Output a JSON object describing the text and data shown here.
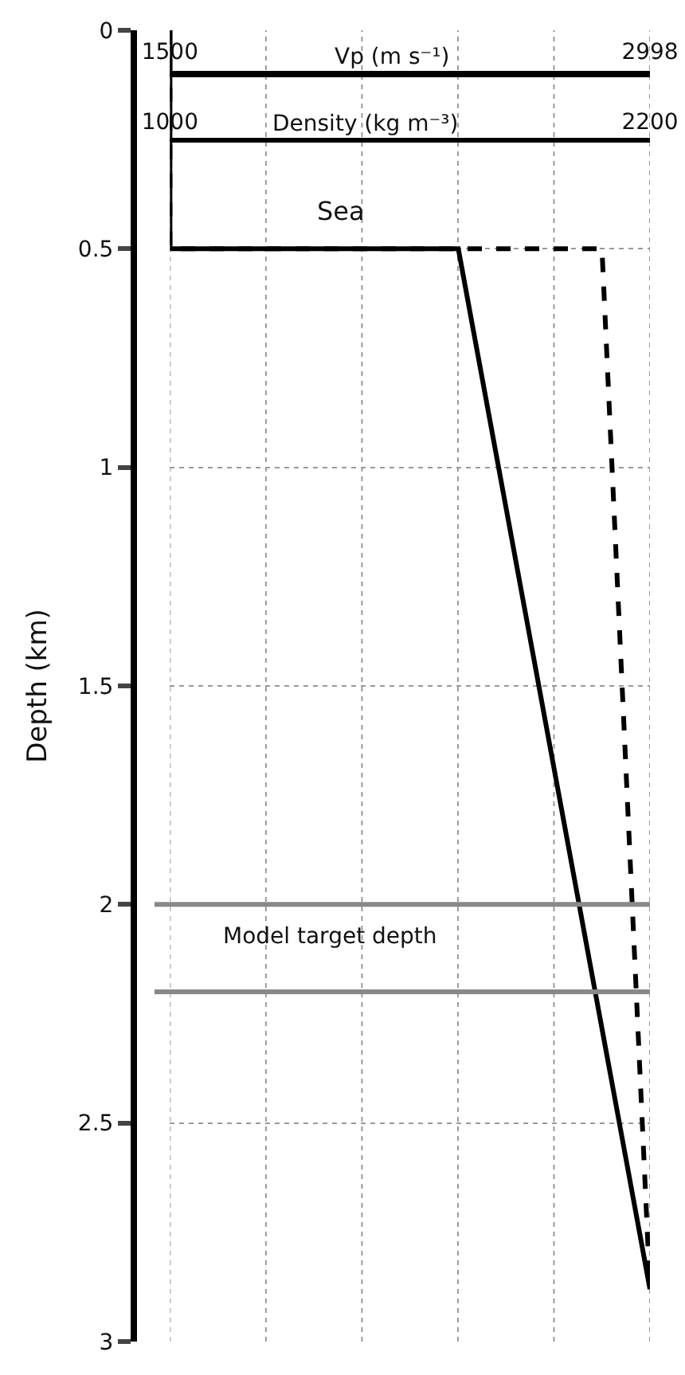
{
  "chart_data": {
    "type": "line",
    "ylabel": "Depth (km)",
    "xlabel": "Vp (m s⁻¹)",
    "x2label": "Density (kg m⁻³)",
    "xlim": [
      1500,
      2998
    ],
    "xticks": [
      1500,
      2998
    ],
    "x2lim": [
      1000,
      2200
    ],
    "x2ticks": [
      1000,
      2200
    ],
    "ylim": [
      3,
      0
    ],
    "yticks": [
      0,
      0.5,
      1,
      1.5,
      2,
      2.5,
      3
    ],
    "grid": true,
    "marker": "none",
    "series": [
      {
        "color": "#000000",
        "line_style": "solid",
        "x": [
          1500,
          1500,
          2400,
          2998
        ],
        "values": [
          0,
          0.5,
          0.5,
          2.88
        ]
      },
      {
        "color": "#000000",
        "line_style": "dashed",
        "axis": "x2",
        "x": [
          1000,
          1000,
          2080,
          2200
        ],
        "values": [
          0,
          0.5,
          0.5,
          2.88
        ]
      }
    ],
    "ref_lines": [
      {
        "axis": "y",
        "value": 2,
        "label": "Model target depth",
        "color": "#888888"
      },
      {
        "axis": "y",
        "value": 2.2,
        "color": "#888888"
      }
    ],
    "annotations": [
      "Sea"
    ]
  }
}
